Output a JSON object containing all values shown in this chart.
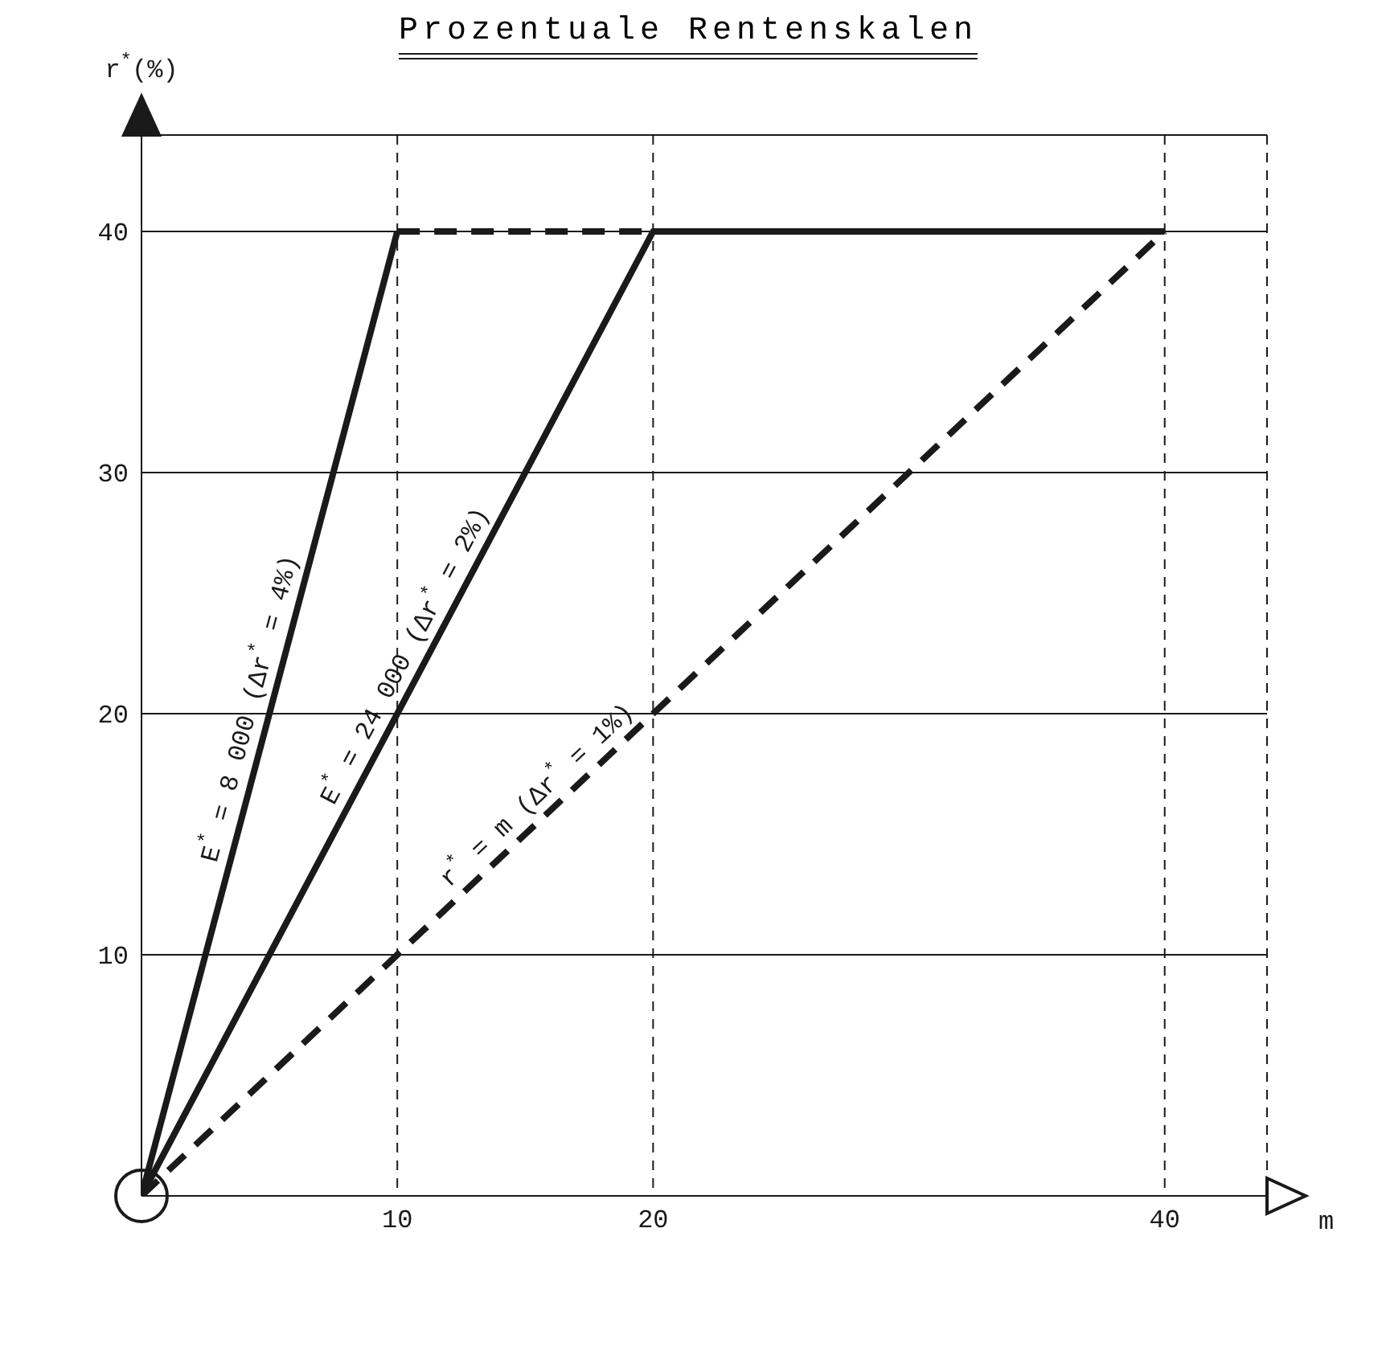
{
  "chart_data": {
    "type": "line",
    "title": "Prozentuale Rentenskalen",
    "xlabel": "m",
    "ylabel": "r$^{*}$(%)",
    "xlim": [
      0,
      44
    ],
    "ylim": [
      0,
      44
    ],
    "xticks": [
      10,
      20,
      40
    ],
    "yticks": [
      10,
      20,
      30,
      40
    ],
    "grid": true,
    "legend": false,
    "series": [
      {
        "name": "E$^{*}$ = 8 000 (Δr$^{*}$ = 4%)",
        "color": "#1a1a1a",
        "x": [
          0,
          10
        ],
        "values": [
          0,
          40
        ],
        "line_style": "solid"
      },
      {
        "color": "#1a1a1a",
        "x": [
          10,
          20
        ],
        "values": [
          40,
          40
        ],
        "line_style": "dashed"
      },
      {
        "name": "E$^{*}$ = 24 000 (Δr$^{*}$ = 2%)",
        "color": "#1a1a1a",
        "x": [
          0,
          20,
          40
        ],
        "values": [
          0,
          40,
          40
        ],
        "line_style": "solid"
      },
      {
        "name": "r$^{*}$ = m (Δr$^{*}$ = 1%)",
        "color": "#1a1a1a",
        "x": [
          0,
          40
        ],
        "values": [
          0,
          40
        ],
        "line_style": "dashed"
      }
    ]
  }
}
